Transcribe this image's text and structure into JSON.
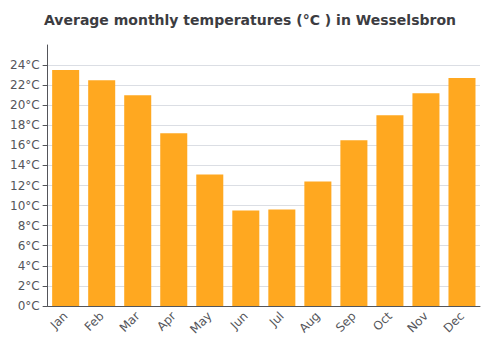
{
  "chart_data": {
    "type": "bar",
    "title": "Average monthly temperatures (°C ) in Wesselsbron",
    "categories": [
      "Jan",
      "Feb",
      "Mar",
      "Apr",
      "May",
      "Jun",
      "Jul",
      "Aug",
      "Sep",
      "Oct",
      "Nov",
      "Dec"
    ],
    "values": [
      23.5,
      22.5,
      21.0,
      17.2,
      13.1,
      9.5,
      9.6,
      12.4,
      16.5,
      19.0,
      21.2,
      22.7
    ],
    "color": "#FFA820",
    "ylim": [
      0,
      26
    ],
    "yticks": [
      {
        "value": 0,
        "label": "0°C"
      },
      {
        "value": 2,
        "label": "2°C"
      },
      {
        "value": 4,
        "label": "4°C"
      },
      {
        "value": 6,
        "label": "6°C"
      },
      {
        "value": 8,
        "label": "8°C"
      },
      {
        "value": 10,
        "label": "10°C"
      },
      {
        "value": 12,
        "label": "12°C"
      },
      {
        "value": 14,
        "label": "14°C"
      },
      {
        "value": 16,
        "label": "16°C"
      },
      {
        "value": 18,
        "label": "18°C"
      },
      {
        "value": 20,
        "label": "20°C"
      },
      {
        "value": 22,
        "label": "22°C"
      },
      {
        "value": 24,
        "label": "24°C"
      }
    ],
    "grid": true
  }
}
